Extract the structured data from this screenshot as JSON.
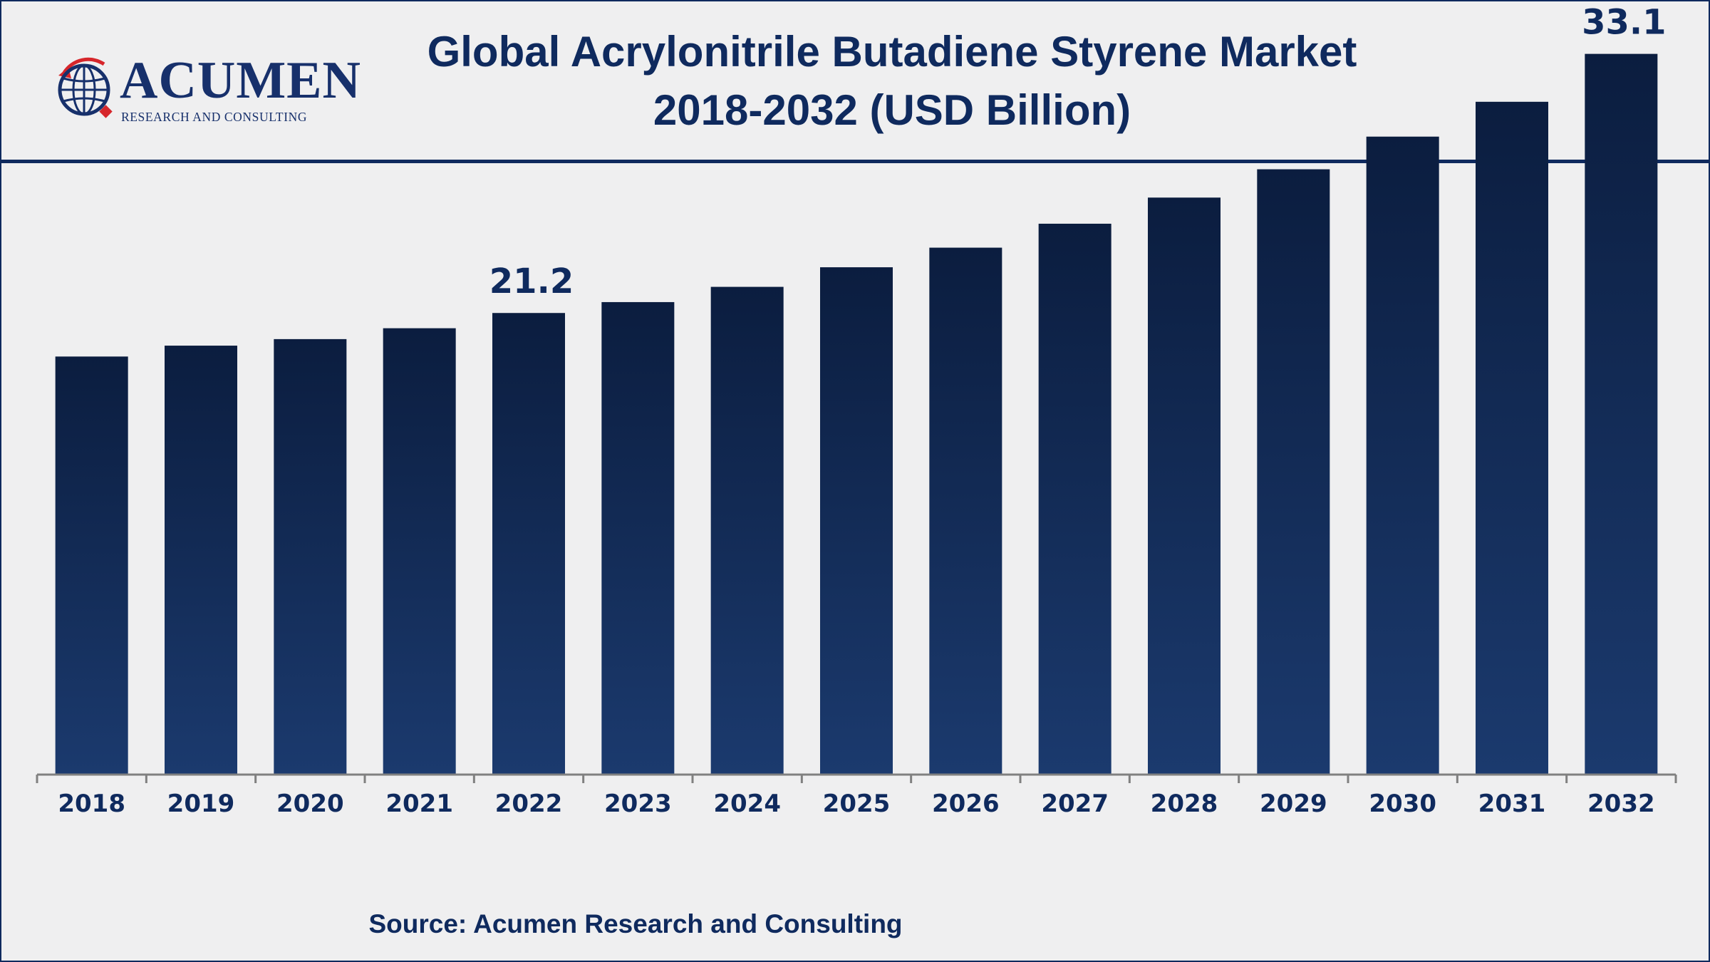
{
  "header": {
    "logo": {
      "wordmark": "ACUMEN",
      "tagline": "RESEARCH AND CONSULTING"
    },
    "title_line1": "Global Acrylonitrile Butadiene Styrene Market",
    "title_line2": "2018-2032 (USD Billion)"
  },
  "chart_data": {
    "type": "bar",
    "title": "Global Acrylonitrile Butadiene Styrene Market 2018-2032 (USD Billion)",
    "categories": [
      "2018",
      "2019",
      "2020",
      "2021",
      "2022",
      "2023",
      "2024",
      "2025",
      "2026",
      "2027",
      "2028",
      "2029",
      "2030",
      "2031",
      "2032"
    ],
    "values": [
      19.2,
      19.7,
      20.0,
      20.5,
      21.2,
      21.7,
      22.4,
      23.3,
      24.2,
      25.3,
      26.5,
      27.8,
      29.3,
      30.9,
      33.1
    ],
    "data_labels": [
      {
        "category": "2022",
        "text": "21.2"
      },
      {
        "category": "2032",
        "text": "33.1"
      }
    ],
    "xlabel": "",
    "ylabel": "",
    "ylim": [
      0,
      36
    ],
    "grid": false,
    "legend": "none",
    "bar_color_top": "#0b1d3f",
    "bar_color_bottom": "#1b3a6e",
    "axis_color": "#808080",
    "text_color": "#0f2a5e"
  },
  "footer": {
    "source": "Source: Acumen Research and Consulting"
  }
}
